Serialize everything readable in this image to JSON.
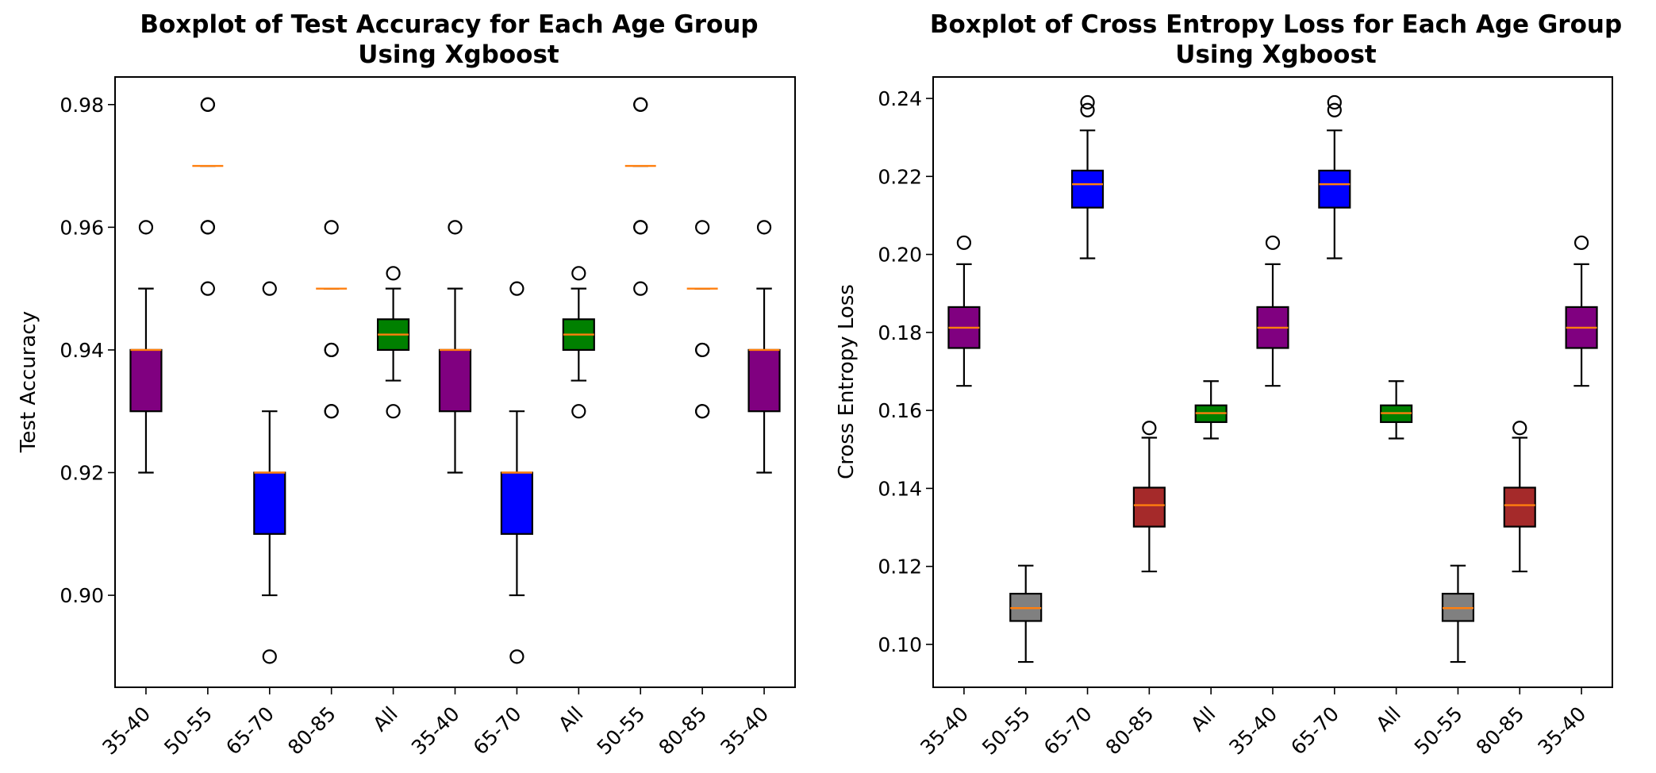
{
  "chart_data": [
    {
      "type": "boxplot",
      "title_line1": "Boxplot of Test Accuracy for Each Age Group",
      "title_line2": "Using Xgboost",
      "xlabel": "",
      "ylabel": "Test Accuracy",
      "ylim": [
        0.885,
        0.9845
      ],
      "yticks": [
        "0.90",
        "0.92",
        "0.94",
        "0.96",
        "0.98"
      ],
      "ytick_values": [
        0.9,
        0.92,
        0.94,
        0.96,
        0.98
      ],
      "categories": [
        "35-40",
        "50-55",
        "65-70",
        "80-85",
        "All",
        "35-40",
        "65-70",
        "All",
        "50-55",
        "80-85",
        "35-40"
      ],
      "boxes": [
        {
          "label": "35-40",
          "color": "#800080",
          "q1": 0.93,
          "median": 0.94,
          "q3": 0.94,
          "whisker_low": 0.92,
          "whisker_high": 0.95,
          "outliers": [
            0.96
          ]
        },
        {
          "label": "50-55",
          "color": "#808080",
          "q1": 0.97,
          "median": 0.97,
          "q3": 0.97,
          "whisker_low": 0.97,
          "whisker_high": 0.97,
          "outliers": [
            0.95,
            0.96,
            0.96,
            0.98,
            0.98
          ]
        },
        {
          "label": "65-70",
          "color": "#0000ff",
          "q1": 0.91,
          "median": 0.92,
          "q3": 0.92,
          "whisker_low": 0.9,
          "whisker_high": 0.93,
          "outliers": [
            0.89,
            0.95
          ]
        },
        {
          "label": "80-85",
          "color": "#a52a2a",
          "q1": 0.95,
          "median": 0.95,
          "q3": 0.95,
          "whisker_low": 0.95,
          "whisker_high": 0.95,
          "outliers": [
            0.93,
            0.93,
            0.94,
            0.94,
            0.96
          ]
        },
        {
          "label": "All",
          "color": "#008000",
          "q1": 0.94,
          "median": 0.9425,
          "q3": 0.945,
          "whisker_low": 0.935,
          "whisker_high": 0.95,
          "outliers": [
            0.93,
            0.9525
          ]
        },
        {
          "label": "35-40",
          "color": "#800080",
          "q1": 0.93,
          "median": 0.94,
          "q3": 0.94,
          "whisker_low": 0.92,
          "whisker_high": 0.95,
          "outliers": [
            0.96
          ]
        },
        {
          "label": "65-70",
          "color": "#0000ff",
          "q1": 0.91,
          "median": 0.92,
          "q3": 0.92,
          "whisker_low": 0.9,
          "whisker_high": 0.93,
          "outliers": [
            0.89,
            0.95
          ]
        },
        {
          "label": "All",
          "color": "#008000",
          "q1": 0.94,
          "median": 0.9425,
          "q3": 0.945,
          "whisker_low": 0.935,
          "whisker_high": 0.95,
          "outliers": [
            0.93,
            0.9525
          ]
        },
        {
          "label": "50-55",
          "color": "#808080",
          "q1": 0.97,
          "median": 0.97,
          "q3": 0.97,
          "whisker_low": 0.97,
          "whisker_high": 0.97,
          "outliers": [
            0.95,
            0.96,
            0.96,
            0.98,
            0.98
          ]
        },
        {
          "label": "80-85",
          "color": "#a52a2a",
          "q1": 0.95,
          "median": 0.95,
          "q3": 0.95,
          "whisker_low": 0.95,
          "whisker_high": 0.95,
          "outliers": [
            0.93,
            0.93,
            0.94,
            0.94,
            0.96
          ]
        },
        {
          "label": "35-40",
          "color": "#800080",
          "q1": 0.93,
          "median": 0.94,
          "q3": 0.94,
          "whisker_low": 0.92,
          "whisker_high": 0.95,
          "outliers": [
            0.96
          ]
        }
      ]
    },
    {
      "type": "boxplot",
      "title_line1": "Boxplot of Cross Entropy Loss for Each Age Group",
      "title_line2": "Using Xgboost",
      "xlabel": "",
      "ylabel": "Cross Entropy Loss",
      "ylim": [
        0.089,
        0.2455
      ],
      "yticks": [
        "0.10",
        "0.12",
        "0.14",
        "0.16",
        "0.18",
        "0.20",
        "0.22",
        "0.24"
      ],
      "ytick_values": [
        0.1,
        0.12,
        0.14,
        0.16,
        0.18,
        0.2,
        0.22,
        0.24
      ],
      "categories": [
        "35-40",
        "50-55",
        "65-70",
        "80-85",
        "All",
        "35-40",
        "65-70",
        "All",
        "50-55",
        "80-85",
        "35-40"
      ],
      "boxes": [
        {
          "label": "35-40",
          "color": "#800080",
          "q1": 0.176,
          "median": 0.1812,
          "q3": 0.1865,
          "whisker_low": 0.1663,
          "whisker_high": 0.1975,
          "outliers": [
            0.203
          ]
        },
        {
          "label": "50-55",
          "color": "#808080",
          "q1": 0.106,
          "median": 0.1093,
          "q3": 0.113,
          "whisker_low": 0.0955,
          "whisker_high": 0.1202,
          "outliers": []
        },
        {
          "label": "65-70",
          "color": "#0000ff",
          "q1": 0.212,
          "median": 0.218,
          "q3": 0.2215,
          "whisker_low": 0.199,
          "whisker_high": 0.2318,
          "outliers": [
            0.237,
            0.239
          ]
        },
        {
          "label": "80-85",
          "color": "#a52a2a",
          "q1": 0.1302,
          "median": 0.1357,
          "q3": 0.1402,
          "whisker_low": 0.1187,
          "whisker_high": 0.153,
          "outliers": [
            0.1555
          ]
        },
        {
          "label": "All",
          "color": "#008000",
          "q1": 0.157,
          "median": 0.1593,
          "q3": 0.1613,
          "whisker_low": 0.1528,
          "whisker_high": 0.1675,
          "outliers": []
        },
        {
          "label": "35-40",
          "color": "#800080",
          "q1": 0.176,
          "median": 0.1812,
          "q3": 0.1865,
          "whisker_low": 0.1663,
          "whisker_high": 0.1975,
          "outliers": [
            0.203
          ]
        },
        {
          "label": "65-70",
          "color": "#0000ff",
          "q1": 0.212,
          "median": 0.218,
          "q3": 0.2215,
          "whisker_low": 0.199,
          "whisker_high": 0.2318,
          "outliers": [
            0.237,
            0.239
          ]
        },
        {
          "label": "All",
          "color": "#008000",
          "q1": 0.157,
          "median": 0.1593,
          "q3": 0.1613,
          "whisker_low": 0.1528,
          "whisker_high": 0.1675,
          "outliers": []
        },
        {
          "label": "50-55",
          "color": "#808080",
          "q1": 0.106,
          "median": 0.1093,
          "q3": 0.113,
          "whisker_low": 0.0955,
          "whisker_high": 0.1202,
          "outliers": []
        },
        {
          "label": "80-85",
          "color": "#a52a2a",
          "q1": 0.1302,
          "median": 0.1357,
          "q3": 0.1402,
          "whisker_low": 0.1187,
          "whisker_high": 0.153,
          "outliers": [
            0.1555
          ]
        },
        {
          "label": "35-40",
          "color": "#800080",
          "q1": 0.176,
          "median": 0.1812,
          "q3": 0.1865,
          "whisker_low": 0.1663,
          "whisker_high": 0.1975,
          "outliers": [
            0.203
          ]
        }
      ]
    }
  ],
  "colors": {
    "median_line": "#ff7f0e",
    "axis": "#000000",
    "background": "#ffffff"
  }
}
